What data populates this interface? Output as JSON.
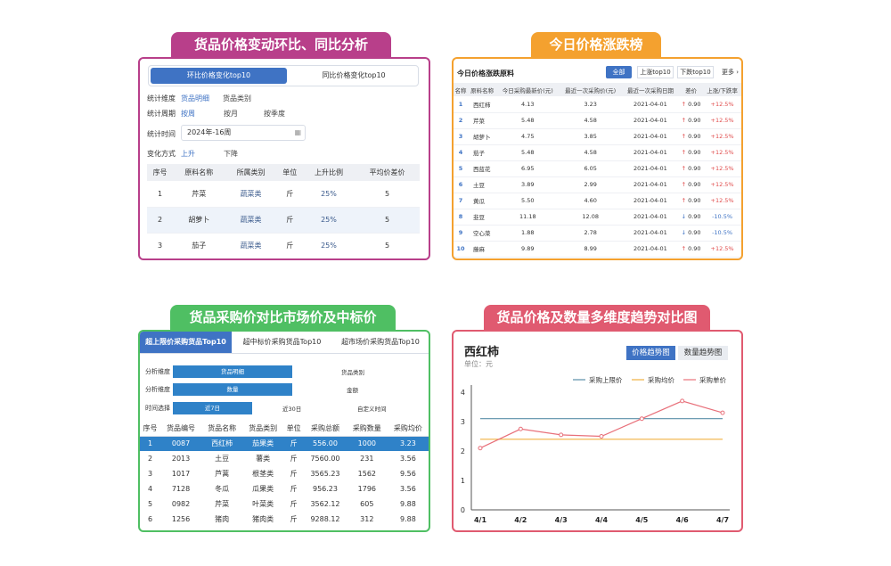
{
  "panel1": {
    "header": "货品价格变动环比、同比分析",
    "tabs": [
      "环比价格变化top10",
      "同比价格变化top10"
    ],
    "filters": [
      {
        "label": "统计维度",
        "options": [
          "货品明细",
          "货品类别"
        ]
      },
      {
        "label": "统计周期",
        "options": [
          "按周",
          "按月",
          "按季度"
        ]
      }
    ],
    "time_label": "统计时间",
    "time_value": "2024年-16周",
    "change_label": "变化方式",
    "change_options": [
      "上升",
      "下降"
    ],
    "columns": [
      "序号",
      "原料名称",
      "所属类别",
      "单位",
      "上升比例",
      "平均价差价"
    ],
    "rows": [
      [
        "1",
        "芹菜",
        "蔬菜类",
        "斤",
        "25%",
        "5"
      ],
      [
        "2",
        "胡萝卜",
        "蔬菜类",
        "斤",
        "25%",
        "5"
      ],
      [
        "3",
        "茄子",
        "蔬菜类",
        "斤",
        "25%",
        "5"
      ]
    ]
  },
  "panel2": {
    "header": "今日价格涨跌榜",
    "title": "今日价格涨跌原料",
    "tabs": [
      "全部",
      "上涨top10",
      "下跌top10"
    ],
    "more": "更多 ›",
    "columns": [
      "名称",
      "原料名称",
      "今日采购最新价(元)",
      "最近一次采购价(元)",
      "最近一次采购日期",
      "差价",
      "上涨/下跌率"
    ],
    "rows": [
      [
        "1",
        "西红柿",
        "4.13",
        "3.23",
        "2021-04-01",
        "up",
        "0.90",
        "+12.5%"
      ],
      [
        "2",
        "芹菜",
        "5.48",
        "4.58",
        "2021-04-01",
        "up",
        "0.90",
        "+12.5%"
      ],
      [
        "3",
        "胡萝卜",
        "4.75",
        "3.85",
        "2021-04-01",
        "up",
        "0.90",
        "+12.5%"
      ],
      [
        "4",
        "茄子",
        "5.48",
        "4.58",
        "2021-04-01",
        "up",
        "0.90",
        "+12.5%"
      ],
      [
        "5",
        "西蓝花",
        "6.95",
        "6.05",
        "2021-04-01",
        "up",
        "0.90",
        "+12.5%"
      ],
      [
        "6",
        "土豆",
        "3.89",
        "2.99",
        "2021-04-01",
        "up",
        "0.90",
        "+12.5%"
      ],
      [
        "7",
        "黄瓜",
        "5.50",
        "4.60",
        "2021-04-01",
        "up",
        "0.90",
        "+12.5%"
      ],
      [
        "8",
        "韭豆",
        "11.18",
        "12.08",
        "2021-04-01",
        "down",
        "0.90",
        "-10.5%"
      ],
      [
        "9",
        "空心菜",
        "1.88",
        "2.78",
        "2021-04-01",
        "down",
        "0.90",
        "-10.5%"
      ],
      [
        "10",
        "藤麻",
        "9.89",
        "8.99",
        "2021-04-01",
        "up",
        "0.90",
        "+12.5%"
      ]
    ]
  },
  "panel3": {
    "header": "货品采购价对比市场价及中标价",
    "tabs": [
      "超上限价采购货品Top10",
      "超中标价采购货品Top10",
      "超市场价采购货品Top10"
    ],
    "filters": [
      {
        "label": "分析维度",
        "selected": "货品明细",
        "other": [
          "货品类别"
        ]
      },
      {
        "label": "分析维度",
        "selected": "数量",
        "other": [
          "金额"
        ]
      },
      {
        "label": "时间选择",
        "selected": "近7日",
        "other": [
          "近30日",
          "自定义时间"
        ]
      }
    ],
    "columns": [
      "序号",
      "货品编号",
      "货品名称",
      "货品类别",
      "单位",
      "采购总额",
      "采购数量",
      "采购均价"
    ],
    "rows": [
      [
        "1",
        "0087",
        "西红柿",
        "茄果类",
        "斤",
        "556.00",
        "1000",
        "3.23"
      ],
      [
        "2",
        "2013",
        "土豆",
        "薯类",
        "斤",
        "7560.00",
        "231",
        "3.56"
      ],
      [
        "3",
        "1017",
        "芦蒿",
        "根茎类",
        "斤",
        "3565.23",
        "1562",
        "9.56"
      ],
      [
        "4",
        "7128",
        "冬瓜",
        "瓜果类",
        "斤",
        "956.23",
        "1796",
        "3.56"
      ],
      [
        "5",
        "0982",
        "芹菜",
        "叶菜类",
        "斤",
        "3562.12",
        "605",
        "9.88"
      ],
      [
        "6",
        "1256",
        "猪肉",
        "猪肉类",
        "斤",
        "9288.12",
        "312",
        "9.88"
      ]
    ]
  },
  "panel4": {
    "header": "货品价格及数量多维度趋势对比图",
    "title": "西红柿",
    "unit": "单位：元",
    "tabs": [
      "价格趋势图",
      "数量趋势图"
    ]
  },
  "chart_data": {
    "type": "line",
    "categories": [
      "4/1",
      "4/2",
      "4/3",
      "4/4",
      "4/5",
      "4/6",
      "4/7"
    ],
    "series": [
      {
        "name": "采购上限价",
        "values": [
          3.1,
          3.1,
          3.1,
          3.1,
          3.1,
          3.1,
          3.1
        ],
        "color": "#5a8fa8"
      },
      {
        "name": "采购均价",
        "values": [
          2.4,
          2.4,
          2.4,
          2.4,
          2.4,
          2.4,
          2.4
        ],
        "color": "#f0b040"
      },
      {
        "name": "采购单价",
        "values": [
          2.1,
          2.75,
          2.55,
          2.5,
          3.1,
          3.7,
          3.3
        ],
        "color": "#e8707a"
      }
    ],
    "yticks": [
      0,
      1,
      2,
      3,
      4
    ],
    "ylim": [
      0,
      4
    ],
    "legend": "top-right",
    "grid": false
  },
  "colors": {
    "panel1": "#b83f8a",
    "panel2": "#f4a12f",
    "panel3": "#4fbf63",
    "panel4": "#e05a70",
    "accent": "#3f73c4"
  }
}
